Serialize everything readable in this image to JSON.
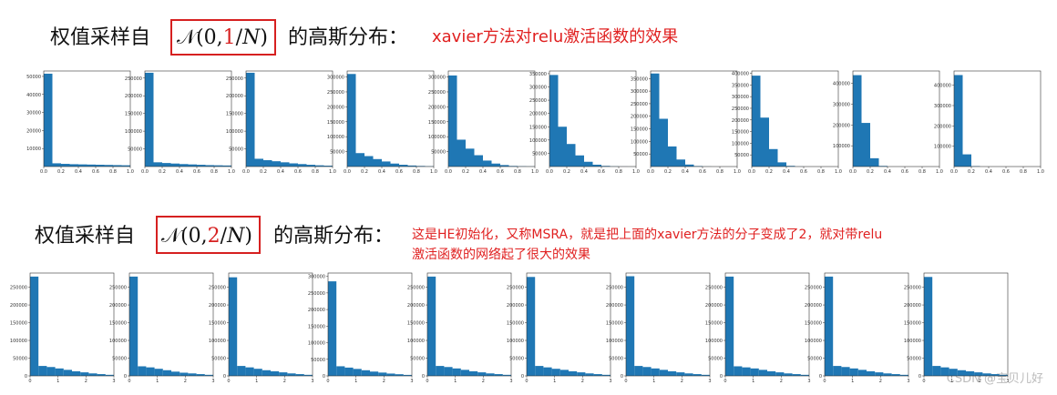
{
  "header1": {
    "prefix": "权值采样自",
    "formula_open": "𝒩(0,",
    "formula_num": "1",
    "formula_close": "/𝑁)",
    "suffix": "的高斯分布：",
    "note": "xavier方法对relu激活函数的效果"
  },
  "header2": {
    "prefix": "权值采样自",
    "formula_open": "𝒩(0,",
    "formula_num": "2",
    "formula_close": "/𝑁)",
    "suffix": "的高斯分布：",
    "note_lines": [
      "这是HE初始化，又称MSRA，就是把上面的xavier方法的分子变成了2，就对带relu",
      "激活函数的网络起了很大的效果"
    ]
  },
  "watermark": "CSDN @宝贝儿好",
  "chart_data": [
    {
      "type": "histogram",
      "color": "#1f77b4",
      "bins": [
        0,
        0.1,
        0.2,
        0.3,
        0.4,
        0.5,
        0.6,
        0.7,
        0.8,
        0.9,
        1
      ],
      "counts": [
        51500,
        1800,
        1500,
        1300,
        1200,
        1100,
        1000,
        900,
        800,
        700
      ],
      "xlim": [
        0,
        1
      ],
      "xticks": [
        {
          "value": 0,
          "label": "0.0"
        },
        0.2,
        0.4,
        0.6,
        0.8,
        {
          "value": 1,
          "label": "1.0"
        }
      ],
      "ylim": [
        0,
        53000
      ],
      "yticks": [
        10000,
        20000,
        30000,
        40000,
        50000
      ]
    },
    {
      "type": "histogram",
      "color": "#1f77b4",
      "bins": [
        0,
        0.1,
        0.2,
        0.3,
        0.4,
        0.5,
        0.6,
        0.7,
        0.8,
        0.9,
        1
      ],
      "counts": [
        265000,
        12000,
        10000,
        8500,
        7000,
        6000,
        5000,
        4000,
        3500,
        3000
      ],
      "xlim": [
        0,
        1
      ],
      "xticks": [
        {
          "value": 0,
          "label": "0.0"
        },
        0.2,
        0.4,
        0.6,
        0.8,
        {
          "value": 1,
          "label": "1.0"
        }
      ],
      "ylim": [
        0,
        270000
      ],
      "yticks": [
        50000,
        100000,
        150000,
        200000,
        250000
      ]
    },
    {
      "type": "histogram",
      "color": "#1f77b4",
      "bins": [
        0,
        0.1,
        0.2,
        0.3,
        0.4,
        0.5,
        0.6,
        0.7,
        0.8,
        0.9,
        1
      ],
      "counts": [
        265000,
        22000,
        18000,
        15000,
        12000,
        9000,
        7000,
        5000,
        3500,
        2500
      ],
      "xlim": [
        0,
        1
      ],
      "xticks": [
        {
          "value": 0,
          "label": "0.0"
        },
        0.2,
        0.4,
        0.6,
        0.8,
        {
          "value": 1,
          "label": "1.0"
        }
      ],
      "ylim": [
        0,
        270000
      ],
      "yticks": [
        50000,
        100000,
        150000,
        200000,
        250000
      ]
    },
    {
      "type": "histogram",
      "color": "#1f77b4",
      "bins": [
        0,
        0.1,
        0.2,
        0.3,
        0.4,
        0.5,
        0.6,
        0.7,
        0.8,
        0.9,
        1
      ],
      "counts": [
        310000,
        45000,
        35000,
        25000,
        17000,
        10000,
        6000,
        3500,
        2000,
        1000
      ],
      "xlim": [
        0,
        1
      ],
      "xticks": [
        {
          "value": 0,
          "label": "0.0"
        },
        0.2,
        0.4,
        0.6,
        0.8,
        {
          "value": 1,
          "label": "1.0"
        }
      ],
      "ylim": [
        0,
        320000
      ],
      "yticks": [
        50000,
        100000,
        150000,
        200000,
        250000,
        300000
      ]
    },
    {
      "type": "histogram",
      "color": "#1f77b4",
      "bins": [
        0,
        0.1,
        0.2,
        0.3,
        0.4,
        0.5,
        0.6,
        0.7,
        0.8,
        0.9,
        1
      ],
      "counts": [
        305000,
        90000,
        60000,
        38000,
        20000,
        10000,
        5000,
        2000,
        1000,
        500
      ],
      "xlim": [
        0,
        1
      ],
      "xticks": [
        {
          "value": 0,
          "label": "0.0"
        },
        0.2,
        0.4,
        0.6,
        0.8,
        {
          "value": 1,
          "label": "1.0"
        }
      ],
      "ylim": [
        0,
        320000
      ],
      "yticks": [
        50000,
        100000,
        150000,
        200000,
        250000,
        300000
      ]
    },
    {
      "type": "histogram",
      "color": "#1f77b4",
      "bins": [
        0,
        0.1,
        0.2,
        0.3,
        0.4,
        0.5,
        0.6,
        0.7,
        0.8,
        0.9,
        1
      ],
      "counts": [
        345000,
        150000,
        85000,
        42000,
        18000,
        7000,
        2500,
        800,
        300,
        100
      ],
      "xlim": [
        0,
        1
      ],
      "xticks": [
        {
          "value": 0,
          "label": "0.0"
        },
        0.2,
        0.4,
        0.6,
        0.8,
        {
          "value": 1,
          "label": "1.0"
        }
      ],
      "ylim": [
        0,
        360000
      ],
      "yticks": [
        50000,
        100000,
        150000,
        200000,
        250000,
        300000,
        350000
      ]
    },
    {
      "type": "histogram",
      "color": "#1f77b4",
      "bins": [
        0,
        0.1,
        0.2,
        0.3,
        0.4,
        0.5,
        0.6,
        0.7,
        0.8,
        0.9,
        1
      ],
      "counts": [
        370000,
        190000,
        80000,
        28000,
        8000,
        2000,
        400,
        0,
        0,
        0
      ],
      "xlim": [
        0,
        1
      ],
      "xticks": [
        {
          "value": 0,
          "label": "0.0"
        },
        0.2,
        0.4,
        0.6,
        0.8,
        {
          "value": 1,
          "label": "1.0"
        }
      ],
      "ylim": [
        0,
        380000
      ],
      "yticks": [
        50000,
        100000,
        150000,
        200000,
        250000,
        300000,
        350000
      ]
    },
    {
      "type": "histogram",
      "color": "#1f77b4",
      "bins": [
        0,
        0.1,
        0.2,
        0.3,
        0.4,
        0.5,
        0.6,
        0.7,
        0.8,
        0.9,
        1
      ],
      "counts": [
        390000,
        210000,
        75000,
        18000,
        3000,
        300,
        0,
        0,
        0,
        0
      ],
      "xlim": [
        0,
        1
      ],
      "xticks": [
        {
          "value": 0,
          "label": "0.0"
        },
        0.2,
        0.4,
        0.6,
        0.8,
        {
          "value": 1,
          "label": "1.0"
        }
      ],
      "ylim": [
        0,
        410000
      ],
      "yticks": [
        50000,
        100000,
        150000,
        200000,
        250000,
        300000,
        350000,
        400000
      ]
    },
    {
      "type": "histogram",
      "color": "#1f77b4",
      "bins": [
        0,
        0.1,
        0.2,
        0.3,
        0.4,
        0.5,
        0.6,
        0.7,
        0.8,
        0.9,
        1
      ],
      "counts": [
        440000,
        210000,
        40000,
        3000,
        0,
        0,
        0,
        0,
        0,
        0
      ],
      "xlim": [
        0,
        1
      ],
      "xticks": [
        {
          "value": 0,
          "label": "0.0"
        },
        0.2,
        0.4,
        0.6,
        0.8,
        {
          "value": 1,
          "label": "1.0"
        }
      ],
      "ylim": [
        0,
        460000
      ],
      "yticks": [
        100000,
        200000,
        300000,
        400000
      ]
    },
    {
      "type": "histogram",
      "color": "#1f77b4",
      "bins": [
        0,
        0.1,
        0.2,
        0.3,
        0.4,
        0.5,
        0.6,
        0.7,
        0.8,
        0.9,
        1
      ],
      "counts": [
        450000,
        60000,
        2000,
        0,
        0,
        0,
        0,
        0,
        0,
        0
      ],
      "xlim": [
        0,
        1
      ],
      "xticks": [
        {
          "value": 0,
          "label": "0.0"
        },
        0.2,
        0.4,
        0.6,
        0.8,
        {
          "value": 1,
          "label": "1.0"
        }
      ],
      "ylim": [
        0,
        470000
      ],
      "yticks": [
        100000,
        200000,
        300000,
        400000
      ]
    },
    {
      "type": "histogram",
      "color": "#1f77b4",
      "bins": [
        0,
        0.3,
        0.6,
        0.9,
        1.2,
        1.5,
        1.8,
        2.1,
        2.4,
        2.7,
        3
      ],
      "counts": [
        280000,
        28000,
        25000,
        21000,
        17000,
        13000,
        10000,
        7000,
        5000,
        3000
      ],
      "xlim": [
        0,
        3
      ],
      "xticks": [
        0,
        1,
        2,
        3
      ],
      "ylim": [
        0,
        290000
      ],
      "yticks": [
        0,
        50000,
        100000,
        150000,
        200000,
        250000
      ]
    },
    {
      "type": "histogram",
      "color": "#1f77b4",
      "bins": [
        0,
        0.3,
        0.6,
        0.9,
        1.2,
        1.5,
        1.8,
        2.1,
        2.4,
        2.7,
        3
      ],
      "counts": [
        280000,
        27000,
        24000,
        20000,
        16000,
        12000,
        9000,
        7000,
        5000,
        3000
      ],
      "xlim": [
        0,
        3
      ],
      "xticks": [
        0,
        1,
        2,
        3
      ],
      "ylim": [
        0,
        290000
      ],
      "yticks": [
        0,
        50000,
        100000,
        150000,
        200000,
        250000
      ]
    },
    {
      "type": "histogram",
      "color": "#1f77b4",
      "bins": [
        0,
        0.3,
        0.6,
        0.9,
        1.2,
        1.5,
        1.8,
        2.1,
        2.4,
        2.7,
        3
      ],
      "counts": [
        278000,
        28000,
        24000,
        20000,
        16000,
        13000,
        10000,
        7000,
        5000,
        3000
      ],
      "xlim": [
        0,
        3
      ],
      "xticks": [
        0,
        1,
        2,
        3
      ],
      "ylim": [
        0,
        290000
      ],
      "yticks": [
        0,
        50000,
        100000,
        150000,
        200000,
        250000
      ]
    },
    {
      "type": "histogram",
      "color": "#1f77b4",
      "bins": [
        0,
        0.3,
        0.6,
        0.9,
        1.2,
        1.5,
        1.8,
        2.1,
        2.4,
        2.7,
        3
      ],
      "counts": [
        285000,
        29000,
        25000,
        21000,
        17000,
        13000,
        10000,
        7000,
        5000,
        3000
      ],
      "xlim": [
        0,
        3
      ],
      "xticks": [
        0,
        1,
        2,
        3
      ],
      "ylim": [
        0,
        310000
      ],
      "yticks": [
        0,
        50000,
        100000,
        150000,
        200000,
        250000,
        300000
      ]
    },
    {
      "type": "histogram",
      "color": "#1f77b4",
      "bins": [
        0,
        0.3,
        0.6,
        0.9,
        1.2,
        1.5,
        1.8,
        2.1,
        2.4,
        2.7,
        3
      ],
      "counts": [
        280000,
        28000,
        25000,
        21000,
        17000,
        13000,
        10000,
        7000,
        5000,
        3000
      ],
      "xlim": [
        0,
        3
      ],
      "xticks": [
        0,
        1,
        2,
        3
      ],
      "ylim": [
        0,
        290000
      ],
      "yticks": [
        0,
        50000,
        100000,
        150000,
        200000,
        250000
      ]
    },
    {
      "type": "histogram",
      "color": "#1f77b4",
      "bins": [
        0,
        0.3,
        0.6,
        0.9,
        1.2,
        1.5,
        1.8,
        2.1,
        2.4,
        2.7,
        3
      ],
      "counts": [
        279000,
        28000,
        24000,
        20000,
        17000,
        13000,
        10000,
        7000,
        5000,
        3000
      ],
      "xlim": [
        0,
        3
      ],
      "xticks": [
        0,
        1,
        2,
        3
      ],
      "ylim": [
        0,
        290000
      ],
      "yticks": [
        0,
        50000,
        100000,
        150000,
        200000,
        250000
      ]
    },
    {
      "type": "histogram",
      "color": "#1f77b4",
      "bins": [
        0,
        0.3,
        0.6,
        0.9,
        1.2,
        1.5,
        1.8,
        2.1,
        2.4,
        2.7,
        3
      ],
      "counts": [
        281000,
        28000,
        25000,
        21000,
        17000,
        13000,
        10000,
        7000,
        5000,
        3000
      ],
      "xlim": [
        0,
        3
      ],
      "xticks": [
        0,
        1,
        2,
        3
      ],
      "ylim": [
        0,
        290000
      ],
      "yticks": [
        0,
        50000,
        100000,
        150000,
        200000,
        250000
      ]
    },
    {
      "type": "histogram",
      "color": "#1f77b4",
      "bins": [
        0,
        0.3,
        0.6,
        0.9,
        1.2,
        1.5,
        1.8,
        2.1,
        2.4,
        2.7,
        3
      ],
      "counts": [
        280000,
        27000,
        24000,
        21000,
        17000,
        13000,
        10000,
        7000,
        5000,
        3000
      ],
      "xlim": [
        0,
        3
      ],
      "xticks": [
        0,
        1,
        2,
        3
      ],
      "ylim": [
        0,
        290000
      ],
      "yticks": [
        0,
        50000,
        100000,
        150000,
        200000,
        250000
      ]
    },
    {
      "type": "histogram",
      "color": "#1f77b4",
      "bins": [
        0,
        0.3,
        0.6,
        0.9,
        1.2,
        1.5,
        1.8,
        2.1,
        2.4,
        2.7,
        3
      ],
      "counts": [
        280000,
        28000,
        25000,
        21000,
        17000,
        13000,
        10000,
        7000,
        5000,
        3000
      ],
      "xlim": [
        0,
        3
      ],
      "xticks": [
        0,
        1,
        2,
        3
      ],
      "ylim": [
        0,
        290000
      ],
      "yticks": [
        0,
        50000,
        100000,
        150000,
        200000,
        250000
      ]
    },
    {
      "type": "histogram",
      "color": "#1f77b4",
      "bins": [
        0,
        0.3,
        0.6,
        0.9,
        1.2,
        1.5,
        1.8,
        2.1,
        2.4,
        2.7,
        3
      ],
      "counts": [
        279000,
        28000,
        24000,
        20000,
        16000,
        13000,
        10000,
        7000,
        5000,
        3000
      ],
      "xlim": [
        0,
        3
      ],
      "xticks": [
        0,
        1,
        2,
        3
      ],
      "ylim": [
        0,
        290000
      ],
      "yticks": [
        0,
        50000,
        100000,
        150000,
        200000,
        250000
      ]
    }
  ]
}
